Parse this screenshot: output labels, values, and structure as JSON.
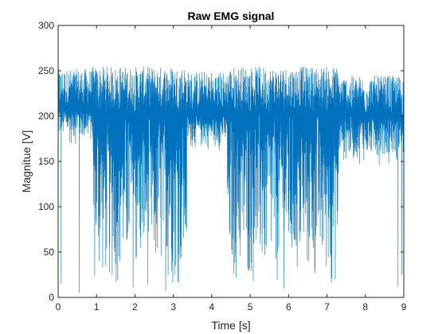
{
  "chart_data": {
    "type": "line",
    "title": "Raw EMG signal",
    "xlabel": "Time [s]",
    "ylabel": "Magnitue [V]",
    "xlim": [
      0,
      9
    ],
    "ylim": [
      0,
      300
    ],
    "x_ticks": [
      "0",
      "1",
      "2",
      "3",
      "4",
      "5",
      "6",
      "7",
      "8",
      "9"
    ],
    "y_ticks": [
      "0",
      "50",
      "100",
      "150",
      "200",
      "250",
      "300"
    ],
    "grid": false,
    "color": "#0072BD",
    "series": [
      {
        "segments": [
          {
            "x_start": 0.0,
            "x_end": 0.9,
            "min": 165,
            "max": 252,
            "baseline": 210
          },
          {
            "x_start": 0.9,
            "x_end": 3.35,
            "min": 2,
            "max": 255,
            "baseline": 205
          },
          {
            "x_start": 3.35,
            "x_end": 4.4,
            "min": 160,
            "max": 250,
            "baseline": 200
          },
          {
            "x_start": 4.4,
            "x_end": 7.3,
            "min": 2,
            "max": 255,
            "baseline": 205
          },
          {
            "x_start": 7.3,
            "x_end": 9.0,
            "min": 145,
            "max": 245,
            "baseline": 200
          }
        ],
        "spikes": [
          {
            "x": 0.08,
            "y": 15
          },
          {
            "x": 0.55,
            "y": 5
          },
          {
            "x": 8.85,
            "y": 12
          },
          {
            "x": 8.95,
            "y": 25
          }
        ]
      }
    ]
  }
}
